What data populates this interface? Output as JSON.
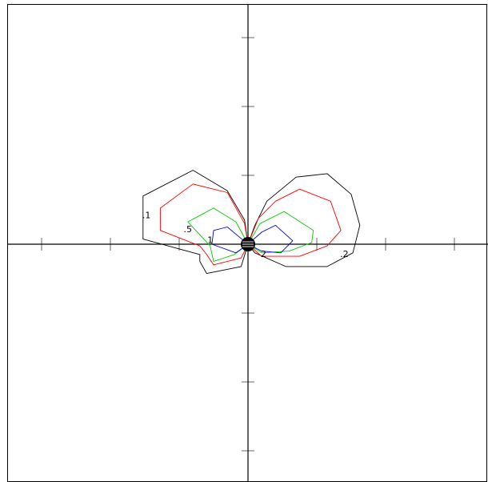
{
  "chart_data": {
    "type": "line",
    "title": "",
    "xlabel": "",
    "ylabel": "",
    "xlim": [
      -7,
      7
    ],
    "ylim": [
      -7,
      7
    ],
    "grid": false,
    "tick_step": 2,
    "colors": {
      "background": "#ffffff",
      "axis": "#000000",
      "black": "#000000",
      "red": "#ff0000",
      "green": "#00cc00",
      "blue": "#0000cc"
    },
    "series": [
      {
        "color": "black",
        "labels": [
          {
            "text": ".1",
            "at": [
              -2.95,
              0.82
            ]
          }
        ],
        "points": [
          [
            0,
            0
          ],
          [
            0.2,
            0.55
          ],
          [
            0.55,
            1.25
          ],
          [
            1.4,
            1.95
          ],
          [
            2.3,
            2.05
          ],
          [
            3,
            1.45
          ],
          [
            3.25,
            0.55
          ],
          [
            3.05,
            -0.25
          ],
          [
            2.3,
            -0.65
          ],
          [
            1.1,
            -0.65
          ],
          [
            0.2,
            -0.25
          ],
          [
            0,
            0
          ],
          [
            -0.2,
            -0.65
          ],
          [
            -1.2,
            -0.85
          ],
          [
            -1.4,
            -0.5
          ],
          [
            -1.4,
            -0.3
          ],
          [
            -3.05,
            0.15
          ],
          [
            -3.05,
            1.4
          ],
          [
            -1.6,
            2.15
          ],
          [
            -0.6,
            1.55
          ],
          [
            -0.1,
            0.7
          ],
          [
            0,
            0
          ]
        ]
      },
      {
        "color": "red",
        "labels": [
          {
            "text": ".2",
            "at": [
              2.8,
              -0.3
            ]
          }
        ],
        "points": [
          [
            0,
            0
          ],
          [
            0.3,
            0.75
          ],
          [
            0.8,
            1.25
          ],
          [
            1.5,
            1.6
          ],
          [
            2.4,
            1.25
          ],
          [
            2.7,
            0.4
          ],
          [
            2.3,
            -0.05
          ],
          [
            1.5,
            -0.35
          ],
          [
            0.4,
            -0.35
          ],
          [
            0,
            0
          ],
          [
            -0.2,
            -0.4
          ],
          [
            -1,
            -0.6
          ],
          [
            -1.2,
            -0.3
          ],
          [
            -1.4,
            -0.05
          ],
          [
            -2.55,
            0.4
          ],
          [
            -2.55,
            1.05
          ],
          [
            -1.6,
            1.75
          ],
          [
            -0.6,
            1.5
          ],
          [
            -0.1,
            0.6
          ],
          [
            0,
            0
          ]
        ]
      },
      {
        "color": "green",
        "labels": [
          {
            "text": ".5",
            "at": [
              -1.75,
              0.42
            ]
          }
        ],
        "points": [
          [
            0,
            0
          ],
          [
            0.35,
            0.6
          ],
          [
            1.05,
            0.95
          ],
          [
            1.9,
            0.4
          ],
          [
            1.85,
            0.05
          ],
          [
            1.2,
            -0.2
          ],
          [
            0.4,
            -0.25
          ],
          [
            0,
            0
          ],
          [
            -0.4,
            -0.3
          ],
          [
            -1,
            -0.5
          ],
          [
            -1.1,
            -0.05
          ],
          [
            -1.75,
            0.65
          ],
          [
            -1,
            1.05
          ],
          [
            -0.35,
            0.65
          ],
          [
            0,
            0
          ]
        ]
      },
      {
        "color": "blue",
        "labels": [
          {
            "text": "1",
            "at": [
              -1.1,
              0.1
            ]
          },
          {
            "text": "2",
            "at": [
              0.45,
              -0.3
            ]
          }
        ],
        "points": [
          [
            0,
            0
          ],
          [
            0.4,
            0.35
          ],
          [
            0.8,
            0.55
          ],
          [
            1.3,
            0.1
          ],
          [
            0.95,
            -0.25
          ],
          [
            0.4,
            -0.2
          ],
          [
            0,
            0
          ],
          [
            -0.35,
            -0.25
          ],
          [
            -1.05,
            0
          ],
          [
            -1,
            0.4
          ],
          [
            -0.6,
            0.5
          ],
          [
            -0.3,
            0.25
          ],
          [
            0,
            0
          ]
        ]
      }
    ],
    "markers": [
      {
        "type": "filled-circle",
        "at": [
          0,
          0
        ]
      }
    ]
  }
}
